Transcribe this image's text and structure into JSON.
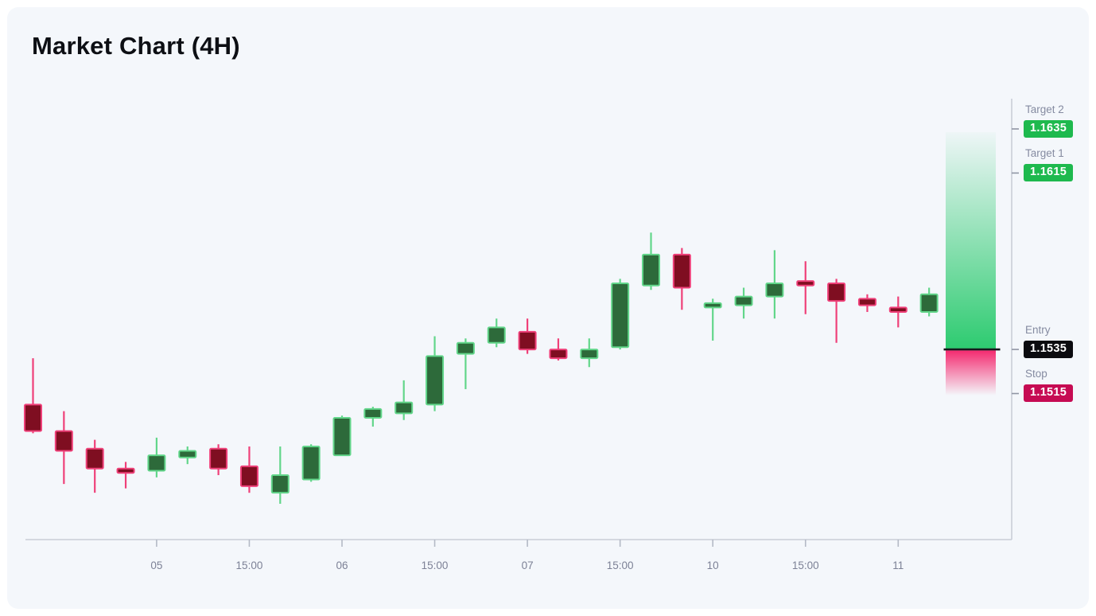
{
  "title": "Market Chart (4H)",
  "colors": {
    "card_bg": "#f4f7fb",
    "bull_body": "#2d6a3a",
    "bull_line": "#62d68a",
    "bear_body": "#7f0e21",
    "bear_line": "#ef4079",
    "profit_zone": "#2dcb70",
    "loss_zone": "#f42b70",
    "entry_line": "#17181c",
    "axis_line": "#c9ced8",
    "tick_mark": "#b4bac6",
    "level_tick": "#8f95a4",
    "tick_text": "#7c8196",
    "target_badge": "#1eb94e",
    "entry_badge": "#0b0b0f",
    "stop_badge": "#c60b53"
  },
  "levels": [
    {
      "id": "target2",
      "label": "Target 2",
      "value": "1.1635",
      "price": 1.1635,
      "badge_color": "#1eb94e"
    },
    {
      "id": "target1",
      "label": "Target 1",
      "value": "1.1615",
      "price": 1.1615,
      "badge_color": "#1eb94e"
    },
    {
      "id": "entry",
      "label": "Entry",
      "value": "1.1535",
      "price": 1.1535,
      "badge_color": "#0b0b0f"
    },
    {
      "id": "stop",
      "label": "Stop",
      "value": "1.1515",
      "price": 1.1515,
      "badge_color": "#c60b53"
    }
  ],
  "chart_data": {
    "type": "candlestick",
    "title": "Market Chart (4H)",
    "timeframe": "4H",
    "grid": false,
    "ylim": [
      1.1449,
      1.1649
    ],
    "x_tick_labels": [
      "05",
      "15:00",
      "06",
      "15:00",
      "07",
      "15:00",
      "10",
      "15:00",
      "11"
    ],
    "x_tick_indices": [
      4,
      7,
      10,
      13,
      16,
      19,
      22,
      25,
      28
    ],
    "entry_price": 1.1535,
    "stop_price": 1.1515,
    "target1_price": 1.1615,
    "target2_price": 1.1635,
    "candles": [
      {
        "o": 1.151,
        "h": 1.1531,
        "l": 1.1497,
        "c": 1.1498
      },
      {
        "o": 1.1498,
        "h": 1.1507,
        "l": 1.1474,
        "c": 1.1489
      },
      {
        "o": 1.149,
        "h": 1.1494,
        "l": 1.147,
        "c": 1.1481
      },
      {
        "o": 1.1481,
        "h": 1.1484,
        "l": 1.1472,
        "c": 1.1479
      },
      {
        "o": 1.148,
        "h": 1.1495,
        "l": 1.1477,
        "c": 1.1487
      },
      {
        "o": 1.1486,
        "h": 1.1491,
        "l": 1.1483,
        "c": 1.1489
      },
      {
        "o": 1.149,
        "h": 1.1492,
        "l": 1.1478,
        "c": 1.1481
      },
      {
        "o": 1.1482,
        "h": 1.1491,
        "l": 1.147,
        "c": 1.1473
      },
      {
        "o": 1.147,
        "h": 1.1491,
        "l": 1.1465,
        "c": 1.1478
      },
      {
        "o": 1.1476,
        "h": 1.1492,
        "l": 1.1475,
        "c": 1.1491
      },
      {
        "o": 1.1487,
        "h": 1.1505,
        "l": 1.1487,
        "c": 1.1504
      },
      {
        "o": 1.1504,
        "h": 1.1509,
        "l": 1.15,
        "c": 1.1508
      },
      {
        "o": 1.1506,
        "h": 1.1521,
        "l": 1.1503,
        "c": 1.1511
      },
      {
        "o": 1.151,
        "h": 1.1541,
        "l": 1.1507,
        "c": 1.1532
      },
      {
        "o": 1.1533,
        "h": 1.154,
        "l": 1.1517,
        "c": 1.1538
      },
      {
        "o": 1.1538,
        "h": 1.1549,
        "l": 1.1536,
        "c": 1.1545
      },
      {
        "o": 1.1543,
        "h": 1.1549,
        "l": 1.1533,
        "c": 1.1535
      },
      {
        "o": 1.1535,
        "h": 1.154,
        "l": 1.153,
        "c": 1.1531
      },
      {
        "o": 1.1531,
        "h": 1.154,
        "l": 1.1527,
        "c": 1.1535
      },
      {
        "o": 1.1536,
        "h": 1.1567,
        "l": 1.1535,
        "c": 1.1565
      },
      {
        "o": 1.1564,
        "h": 1.1588,
        "l": 1.1562,
        "c": 1.1578
      },
      {
        "o": 1.1578,
        "h": 1.1581,
        "l": 1.1553,
        "c": 1.1563
      },
      {
        "o": 1.1554,
        "h": 1.1558,
        "l": 1.1539,
        "c": 1.1556
      },
      {
        "o": 1.1555,
        "h": 1.1563,
        "l": 1.1549,
        "c": 1.1559
      },
      {
        "o": 1.1559,
        "h": 1.158,
        "l": 1.1549,
        "c": 1.1565
      },
      {
        "o": 1.1566,
        "h": 1.1575,
        "l": 1.1551,
        "c": 1.1564
      },
      {
        "o": 1.1565,
        "h": 1.1567,
        "l": 1.1538,
        "c": 1.1557
      },
      {
        "o": 1.1558,
        "h": 1.156,
        "l": 1.1552,
        "c": 1.1555
      },
      {
        "o": 1.1554,
        "h": 1.1559,
        "l": 1.1545,
        "c": 1.1552
      },
      {
        "o": 1.1552,
        "h": 1.1563,
        "l": 1.155,
        "c": 1.156
      }
    ]
  }
}
